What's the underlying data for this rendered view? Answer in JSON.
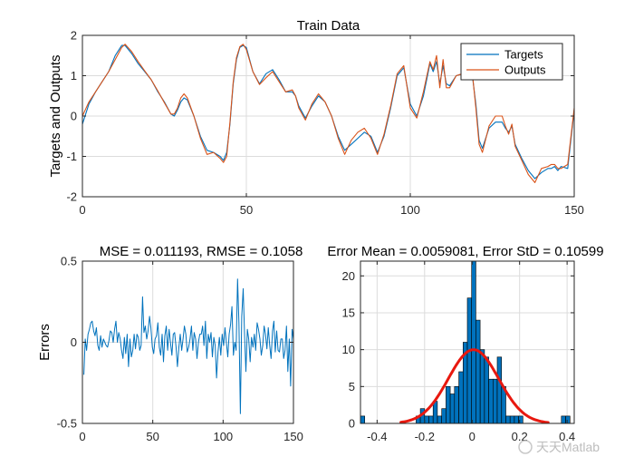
{
  "watermark": "天天Matlab",
  "colors": {
    "targets": "#0072BD",
    "outputs": "#D95319",
    "errors": "#0072BD",
    "hist_bar": "#0072BD",
    "fit": "#e8180f"
  },
  "chart_data": [
    {
      "id": "train",
      "type": "line",
      "title": "Train Data",
      "xlabel": "",
      "ylabel": "Targets and Outputs",
      "xlim": [
        0,
        150
      ],
      "ylim": [
        -2,
        2
      ],
      "xticks": [
        0,
        50,
        100,
        150
      ],
      "yticks": [
        -2,
        -1,
        0,
        1,
        2
      ],
      "grid": true,
      "legend_position": "top-right",
      "x_knots": [
        0,
        2,
        4,
        6,
        8,
        10,
        12,
        13,
        15,
        17,
        19,
        21,
        23,
        25,
        27,
        28,
        29,
        30,
        31,
        32,
        34,
        36,
        38,
        40,
        42,
        43,
        44,
        45,
        46,
        47,
        48,
        49,
        50,
        52,
        54,
        56,
        58,
        60,
        62,
        64,
        65,
        66,
        68,
        70,
        72,
        74,
        76,
        78,
        80,
        82,
        84,
        86,
        88,
        90,
        92,
        94,
        96,
        98,
        100,
        102,
        104,
        106,
        107,
        108,
        109,
        110,
        111,
        112,
        114,
        116,
        118,
        119,
        120,
        121,
        122,
        124,
        126,
        128,
        129,
        130,
        131,
        132,
        134,
        136,
        138,
        140,
        142,
        143,
        144,
        145,
        146,
        148,
        150
      ],
      "series": [
        {
          "name": "Targets",
          "values": [
            -0.2,
            0.3,
            0.6,
            0.85,
            1.1,
            1.5,
            1.75,
            1.75,
            1.55,
            1.3,
            1.1,
            0.9,
            0.6,
            0.35,
            0.05,
            0.0,
            0.15,
            0.35,
            0.45,
            0.4,
            0.0,
            -0.5,
            -0.85,
            -0.9,
            -1.0,
            -1.1,
            -0.9,
            -0.2,
            0.8,
            1.4,
            1.7,
            1.75,
            1.7,
            1.1,
            0.8,
            1.05,
            1.15,
            0.9,
            0.6,
            0.6,
            0.5,
            0.25,
            -0.05,
            0.25,
            0.5,
            0.35,
            0.0,
            -0.5,
            -0.85,
            -0.7,
            -0.55,
            -0.4,
            -0.5,
            -0.9,
            -0.5,
            0.2,
            1.0,
            1.2,
            0.3,
            0.0,
            0.5,
            1.3,
            1.1,
            1.35,
            0.8,
            1.25,
            0.8,
            0.75,
            1.0,
            1.05,
            0.95,
            0.95,
            0.3,
            -0.6,
            -0.8,
            -0.3,
            -0.15,
            -0.15,
            -0.3,
            -0.4,
            -0.25,
            -0.7,
            -1.05,
            -1.35,
            -1.55,
            -1.4,
            -1.3,
            -1.3,
            -1.25,
            -1.35,
            -1.25,
            -1.3,
            0.15
          ]
        },
        {
          "name": "Outputs",
          "values": [
            0.0,
            0.35,
            0.6,
            0.85,
            1.1,
            1.4,
            1.7,
            1.78,
            1.6,
            1.35,
            1.12,
            0.9,
            0.62,
            0.33,
            0.05,
            0.05,
            0.2,
            0.45,
            0.55,
            0.45,
            0.0,
            -0.55,
            -0.95,
            -0.9,
            -1.05,
            -1.15,
            -1.0,
            -0.15,
            0.85,
            1.45,
            1.72,
            1.78,
            1.65,
            1.1,
            0.78,
            0.95,
            1.1,
            0.85,
            0.6,
            0.65,
            0.5,
            0.2,
            -0.1,
            0.3,
            0.55,
            0.35,
            0.0,
            -0.55,
            -0.95,
            -0.6,
            -0.4,
            -0.3,
            -0.55,
            -0.95,
            -0.45,
            0.25,
            1.05,
            1.25,
            0.2,
            -0.05,
            0.6,
            1.35,
            1.15,
            1.5,
            0.7,
            1.4,
            0.7,
            0.7,
            1.0,
            1.05,
            0.95,
            1.0,
            0.2,
            -0.7,
            -0.9,
            -0.25,
            0.0,
            0.0,
            -0.25,
            -0.45,
            -0.2,
            -0.75,
            -1.1,
            -1.45,
            -1.65,
            -1.3,
            -1.25,
            -1.2,
            -1.2,
            -1.3,
            -1.3,
            -1.2,
            0.2
          ]
        }
      ]
    },
    {
      "id": "errors",
      "type": "line",
      "title": "MSE = 0.011193, RMSE = 0.1058",
      "xlabel": "",
      "ylabel": "Errors",
      "xlim": [
        0,
        150
      ],
      "ylim": [
        -0.5,
        0.5
      ],
      "xticks": [
        0,
        50,
        100,
        150
      ],
      "yticks": [
        -0.5,
        0,
        0.5
      ],
      "ytick_labels": [
        "-0.5",
        "0",
        "0.5"
      ],
      "grid": true,
      "series": [
        {
          "name": "",
          "values": [
            -0.2,
            0.02,
            -0.05,
            0.05,
            0.08,
            0.12,
            0.13,
            0.07,
            0.04,
            0.09,
            -0.02,
            -0.05,
            0.04,
            -0.03,
            0.02,
            0.0,
            -0.02,
            -0.03,
            0.01,
            0.07,
            0.06,
            0.0,
            0.08,
            0.13,
            0.0,
            0.06,
            0.02,
            -0.05,
            -0.1,
            0.03,
            -0.07,
            0.05,
            -0.15,
            0.02,
            -0.09,
            -0.05,
            0.05,
            -0.04,
            0.05,
            0.03,
            -0.05,
            -0.02,
            0.28,
            0.06,
            0.1,
            0.02,
            0.07,
            0.16,
            0.09,
            -0.03,
            -0.07,
            0.02,
            0.04,
            0.12,
            -0.03,
            -0.08,
            0.05,
            -0.12,
            0.04,
            0.1,
            -0.05,
            0.08,
            0.0,
            -0.08,
            0.05,
            0.06,
            -0.03,
            -0.15,
            -0.03,
            0.05,
            -0.05,
            0.02,
            0.1,
            0.05,
            -0.06,
            -0.03,
            0.02,
            0.1,
            -0.05,
            0.06,
            0.02,
            -0.1,
            0.0,
            0.05,
            0.05,
            0.1,
            -0.02,
            0.13,
            -0.1,
            0.05,
            0.0,
            0.06,
            -0.09,
            0.03,
            -0.02,
            -0.22,
            -0.06,
            0.03,
            -0.08,
            0.05,
            -0.02,
            0.09,
            0.0,
            -0.09,
            0.05,
            0.11,
            0.22,
            -0.08,
            0.0,
            -0.05,
            0.39,
            0.12,
            -0.44,
            0.16,
            0.33,
            0.05,
            -0.18,
            0.08,
            0.02,
            -0.12,
            0.03,
            -0.03,
            0.05,
            -0.05,
            0.12,
            0.08,
            0.02,
            -0.08,
            -0.02,
            0.1,
            0.05,
            -0.04,
            0.09,
            -0.02,
            -0.1,
            0.07,
            0.13,
            -0.06,
            0.07,
            -0.05,
            -0.06,
            0.02,
            0.02,
            -0.1,
            -0.05,
            0.1,
            -0.18,
            0.02,
            -0.27,
            0.08,
            0.02
          ]
        }
      ]
    },
    {
      "id": "histogram",
      "type": "bar",
      "title": "Error Mean = 0.0059081, Error StD = 0.10599",
      "xlabel": "",
      "ylabel": "",
      "xlim": [
        -0.47,
        0.43
      ],
      "ylim": [
        0,
        22
      ],
      "xticks": [
        -0.4,
        -0.2,
        0,
        0.2,
        0.4
      ],
      "xtick_labels": [
        "-0.4",
        "-0.2",
        "0",
        "0.2",
        "0.4"
      ],
      "yticks": [
        0,
        5,
        10,
        15,
        20
      ],
      "grid": true,
      "bin_width": 0.018,
      "bin_centers": [
        -0.461,
        -0.227,
        -0.209,
        -0.191,
        -0.173,
        -0.155,
        -0.137,
        -0.119,
        -0.101,
        -0.083,
        -0.065,
        -0.047,
        -0.029,
        -0.011,
        0.007,
        0.025,
        0.043,
        0.061,
        0.079,
        0.097,
        0.115,
        0.133,
        0.151,
        0.169,
        0.187,
        0.205,
        0.385,
        0.403
      ],
      "values": [
        1,
        1,
        2,
        1,
        1,
        3,
        1,
        2,
        5,
        4,
        5,
        7,
        11,
        17,
        22,
        14,
        10,
        9,
        6,
        6,
        9,
        5,
        1,
        1,
        1,
        1,
        1,
        1
      ],
      "fit": {
        "type": "normal",
        "mean": 0.0059081,
        "std": 0.10599,
        "peak": 10,
        "x_range": [
          -0.3,
          0.32
        ]
      }
    }
  ]
}
